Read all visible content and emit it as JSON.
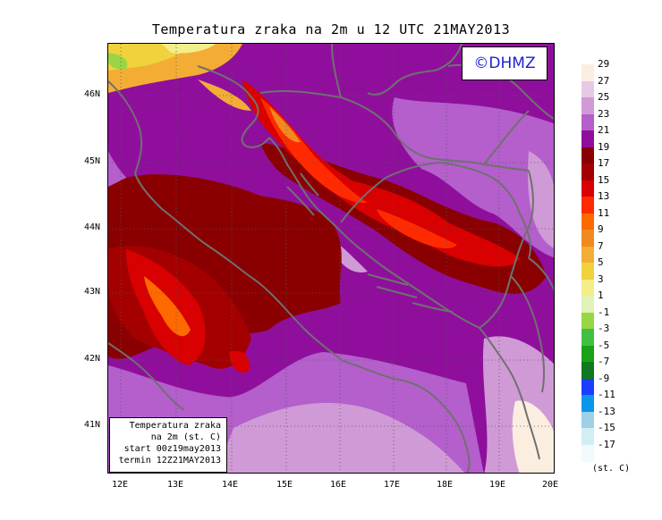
{
  "title": "Temperatura zraka na 2m u 12 UTC 21MAY2013",
  "logo_text": "©DHMZ",
  "info_box": {
    "line1": "Temperatura zraka",
    "line2": "na 2m (st. C)",
    "line3": "start 00z19may2013",
    "line4": "termin 12Z21MAY2013"
  },
  "lat_labels": [
    "46N",
    "45N",
    "44N",
    "43N",
    "42N",
    "41N"
  ],
  "lon_labels": [
    "12E",
    "13E",
    "14E",
    "15E",
    "16E",
    "17E",
    "18E",
    "19E",
    "20E"
  ],
  "legend": {
    "units": "(st. C)",
    "labels": [
      "29",
      "27",
      "25",
      "23",
      "21",
      "19",
      "17",
      "15",
      "13",
      "11",
      "9",
      "7",
      "5",
      "3",
      "1",
      "-1",
      "-3",
      "-5",
      "-7",
      "-9",
      "-11",
      "-13",
      "-15",
      "-17"
    ],
    "colors": [
      "#fbeee0",
      "#e7c9e3",
      "#cf9ad6",
      "#b45fcc",
      "#8f0f9c",
      "#8a0000",
      "#a40000",
      "#d80000",
      "#ff2a00",
      "#ff6a00",
      "#f08a20",
      "#f3ad35",
      "#f0d23c",
      "#f3ee8a",
      "#e0f2b8",
      "#9ad545",
      "#40c040",
      "#19a219",
      "#10781e",
      "#1e3cff",
      "#0a96ea",
      "#9fd0e6",
      "#d2eef5",
      "#f0fbfd"
    ]
  },
  "colors": {
    "logo_text": "#1f1fd0",
    "coastline": "#707070"
  }
}
